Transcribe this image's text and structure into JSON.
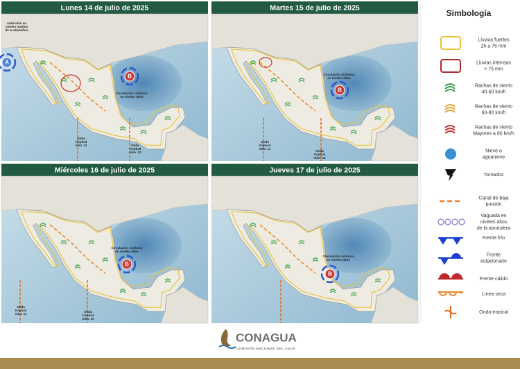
{
  "panels": [
    {
      "title": "Lunes 14 de julio de 2025",
      "centers": [
        "A",
        "B"
      ],
      "annotations": [
        [
          "Anticiclón en",
          "niveles medios",
          "de la atmósfera"
        ],
        [
          "Circulación ciclónica",
          "en niveles altos"
        ],
        [
          "Onda",
          "tropical",
          "núm. 11"
        ],
        [
          "Onda",
          "tropical",
          "núm. 12"
        ]
      ]
    },
    {
      "title": "Martes 15 de julio de 2025",
      "centers": [
        "B"
      ],
      "annotations": [
        [
          "Circulación ciclónica",
          "en niveles altos"
        ],
        [
          "Onda",
          "tropical",
          "núm. 11"
        ],
        [
          "Onda",
          "tropical",
          "núm. 12"
        ]
      ]
    },
    {
      "title": "Miércoles 16 de julio de 2025",
      "centers": [
        "B"
      ],
      "annotations": [
        [
          "Circulación ciclónica",
          "en niveles altos"
        ],
        [
          "Onda",
          "tropical",
          "núm. 11"
        ],
        [
          "Onda",
          "tropical",
          "núm. 12"
        ]
      ]
    },
    {
      "title": "Jueves 17 de julio de 2025",
      "centers": [
        "B"
      ],
      "annotations": [
        [
          "Circulación ciclónica",
          "en niveles altos"
        ]
      ]
    }
  ],
  "legend": {
    "title": "Simbología",
    "items": [
      [
        "Lluvias fuertes",
        "25 a 75 mm"
      ],
      [
        "Lluvias intensas",
        "> 75 mm"
      ],
      [
        "Rachas de viento",
        "40-60 km/h"
      ],
      [
        "Rachas de viento",
        "60-80 km/h"
      ],
      [
        "Rachas de viento",
        "Mayores a 80 km/h"
      ],
      [
        "Nieve o",
        "aguanieve"
      ],
      [
        "Tornados"
      ],
      [
        "Canal de baja",
        "presión"
      ],
      [
        "Vaguada en",
        "niveles altos",
        "de la atmósfera"
      ],
      [
        "Frente frío"
      ],
      [
        "Frente",
        "estacionario"
      ],
      [
        "Frente cálido"
      ],
      [
        "Línea seca"
      ],
      [
        "Onda tropical"
      ]
    ]
  },
  "footer": {
    "brand": "CONAGUA",
    "subtitle": "COMISIÓN NACIONAL DEL AGUA"
  }
}
